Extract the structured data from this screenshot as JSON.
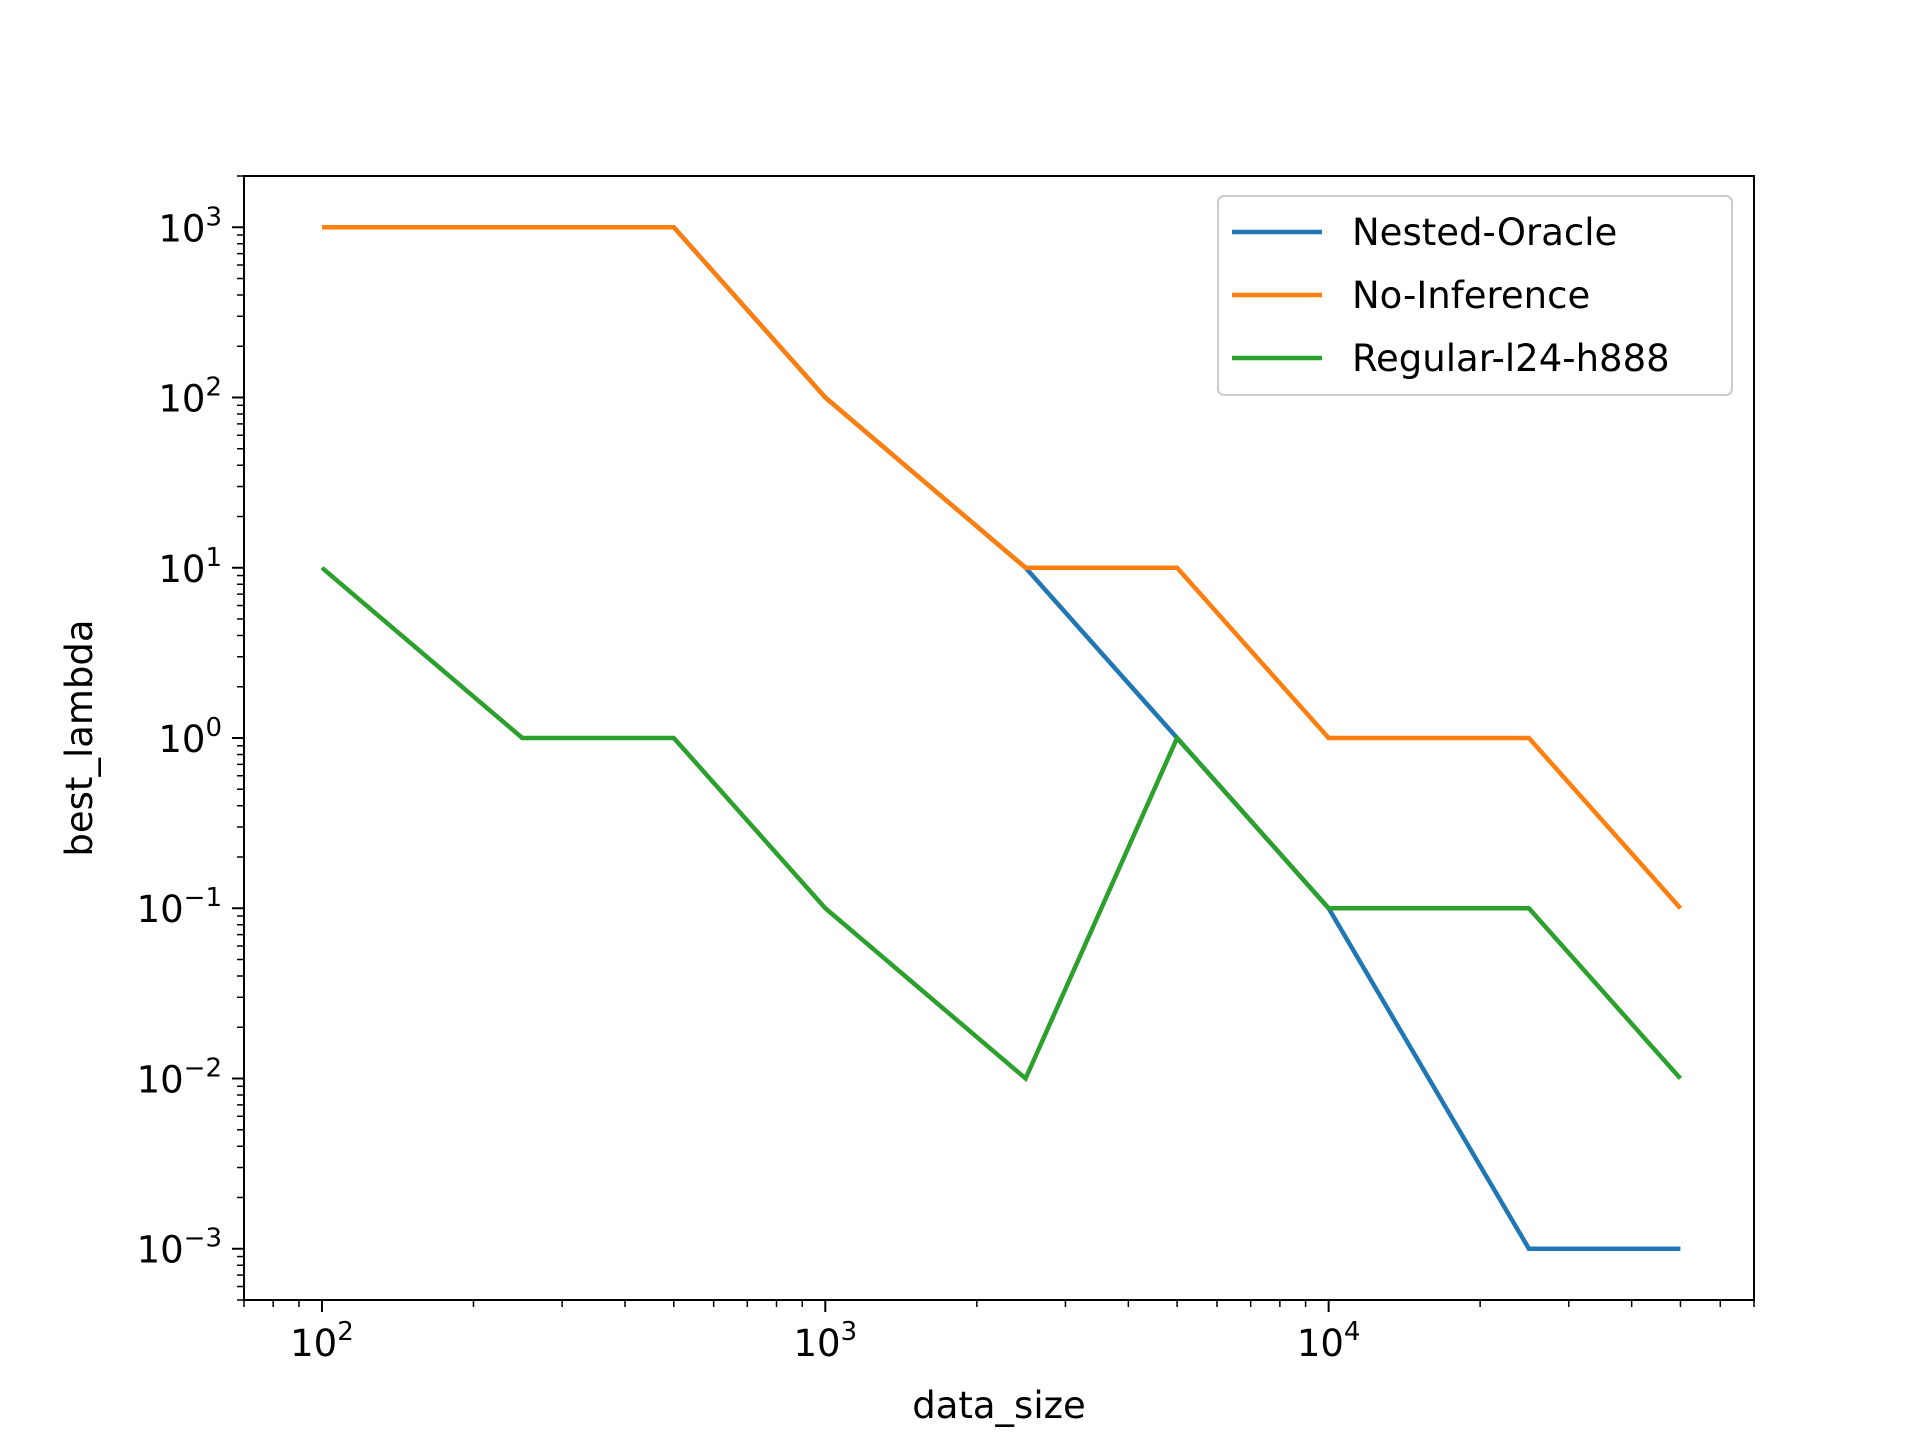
{
  "chart_data": {
    "type": "line",
    "xlabel": "data_size",
    "ylabel": "best_lambda",
    "xscale": "log",
    "yscale": "log",
    "xlim": [
      70,
      70000
    ],
    "ylim": [
      0.0005,
      2000
    ],
    "grid": false,
    "legend_position": "top-right",
    "x": [
      100,
      250,
      500,
      1000,
      2500,
      5000,
      10000,
      25000,
      50000
    ],
    "x_ticks": [
      {
        "value": 100,
        "base": "10",
        "exp": "2"
      },
      {
        "value": 1000,
        "base": "10",
        "exp": "3"
      },
      {
        "value": 10000,
        "base": "10",
        "exp": "4"
      }
    ],
    "y_ticks": [
      {
        "value": 0.001,
        "base": "10",
        "exp": "−3"
      },
      {
        "value": 0.01,
        "base": "10",
        "exp": "−2"
      },
      {
        "value": 0.1,
        "base": "10",
        "exp": "−1"
      },
      {
        "value": 1,
        "base": "10",
        "exp": "0"
      },
      {
        "value": 10,
        "base": "10",
        "exp": "1"
      },
      {
        "value": 100,
        "base": "10",
        "exp": "2"
      },
      {
        "value": 1000,
        "base": "10",
        "exp": "3"
      }
    ],
    "series": [
      {
        "name": "Nested-Oracle",
        "color": "#1f77b4",
        "values": [
          1000,
          1000,
          1000,
          100,
          10,
          1,
          0.1,
          0.001,
          0.001
        ]
      },
      {
        "name": "No-Inference",
        "color": "#ff7f0e",
        "values": [
          1000,
          1000,
          1000,
          100,
          10,
          10,
          1,
          1,
          0.1
        ]
      },
      {
        "name": "Regular-l24-h888",
        "color": "#2ca02c",
        "values": [
          10,
          1,
          1,
          0.1,
          0.01,
          1,
          0.1,
          0.1,
          0.01
        ]
      }
    ]
  }
}
